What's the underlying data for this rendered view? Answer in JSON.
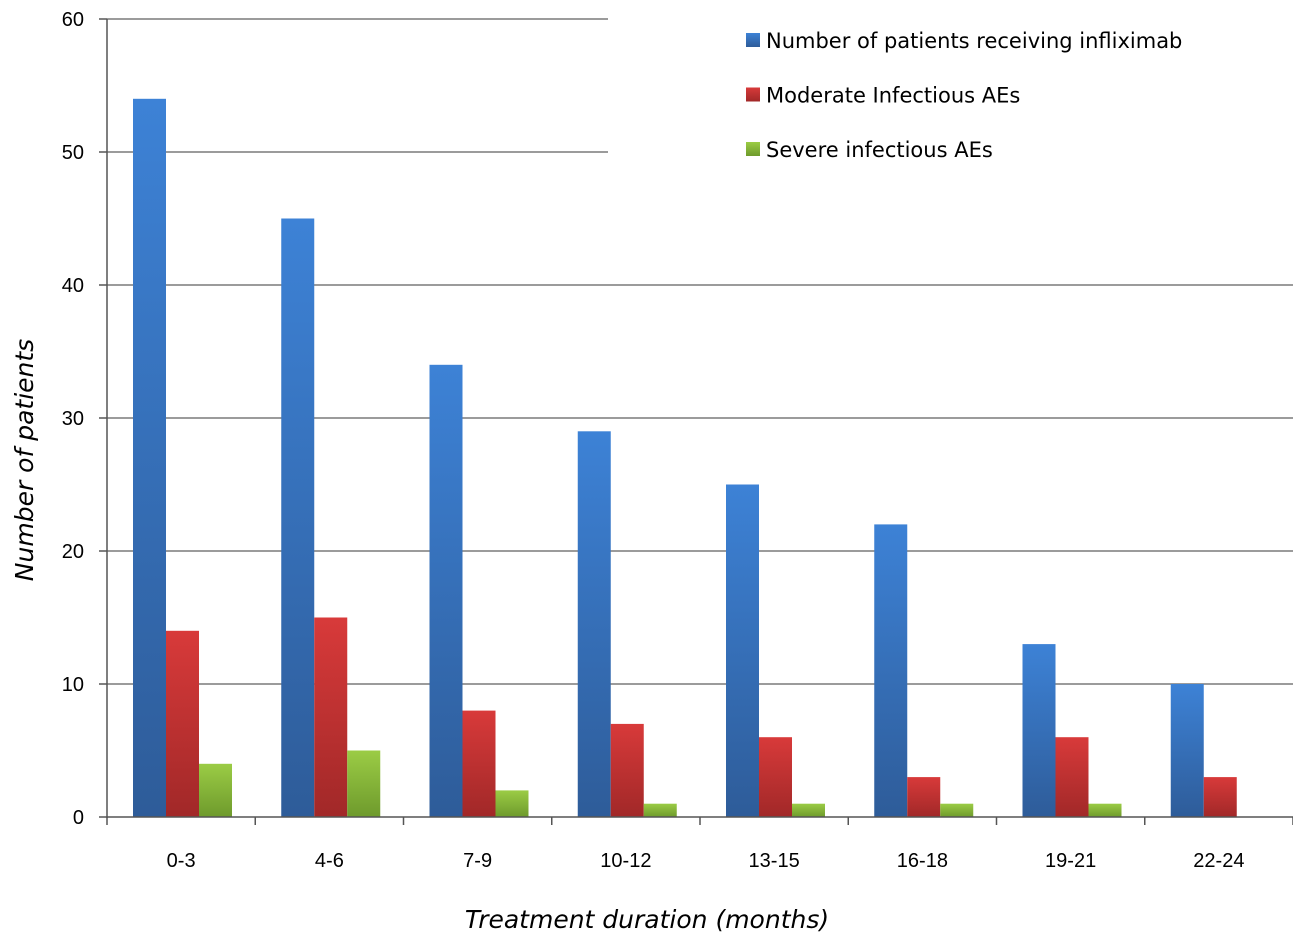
{
  "chart_data": {
    "type": "bar",
    "title": "",
    "xlabel": "Treatment duration (months)",
    "ylabel": "Number of patients",
    "ylim": [
      0,
      60
    ],
    "yticks": [
      0,
      10,
      20,
      30,
      40,
      50,
      60
    ],
    "ytick_labels": [
      "0",
      "10",
      "20",
      "30",
      "40",
      "50",
      "60"
    ],
    "grid": true,
    "legend_position": "top-right",
    "categories": [
      "0-3",
      "4-6",
      "7-9",
      "10-12",
      "13-15",
      "16-18",
      "19-21",
      "22-24"
    ],
    "series": [
      {
        "name": "Number of patients receiving infliximab",
        "color": "#3a78c9",
        "values": [
          54,
          45,
          34,
          29,
          25,
          22,
          13,
          10
        ]
      },
      {
        "name": "Moderate Infectious AEs",
        "color": "#cc3333",
        "values": [
          14,
          15,
          8,
          7,
          6,
          3,
          6,
          3
        ]
      },
      {
        "name": "Severe infectious AEs",
        "color": "#8fbf3a",
        "values": [
          4,
          5,
          2,
          1,
          1,
          1,
          1,
          0
        ]
      }
    ]
  }
}
